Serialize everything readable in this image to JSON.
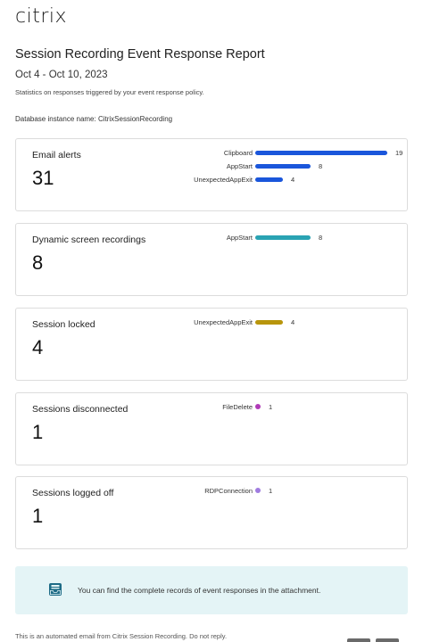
{
  "brand": {
    "logo_text": "citrix"
  },
  "header": {
    "title": "Session Recording Event Response Report",
    "date_range": "Oct 4 - Oct 10, 2023",
    "description": "Statistics on responses triggered by your event response policy.",
    "database": "Database instance name: CitrixSessionRecording"
  },
  "cards": [
    {
      "title": "Email alerts",
      "value": "31",
      "bars": [
        {
          "label": "Clipboard",
          "value": 19,
          "color": "#1a56db"
        },
        {
          "label": "AppStart",
          "value": 8,
          "color": "#1a56db"
        },
        {
          "label": "UnexpectedAppExit",
          "value": 4,
          "color": "#1a56db"
        }
      ]
    },
    {
      "title": "Dynamic screen recordings",
      "value": "8",
      "bars": [
        {
          "label": "AppStart",
          "value": 8,
          "color": "#2aa3b3"
        }
      ]
    },
    {
      "title": "Session locked",
      "value": "4",
      "bars": [
        {
          "label": "UnexpectedAppExit",
          "value": 4,
          "color": "#b8950c"
        }
      ]
    },
    {
      "title": "Sessions disconnected",
      "value": "1",
      "bars": [
        {
          "label": "FileDelete",
          "value": 1,
          "color": "#b03ab8"
        }
      ]
    },
    {
      "title": "Sessions logged off",
      "value": "1",
      "bars": [
        {
          "label": "RDPConnection",
          "value": 1,
          "color": "#a07ce0"
        }
      ]
    }
  ],
  "notice": {
    "icon": "mailbox-tray-icon",
    "text": "You can find the complete records of event responses in the attachment."
  },
  "footer": {
    "text": "This is an automated email from Citrix Session Recording. Do not reply."
  }
}
